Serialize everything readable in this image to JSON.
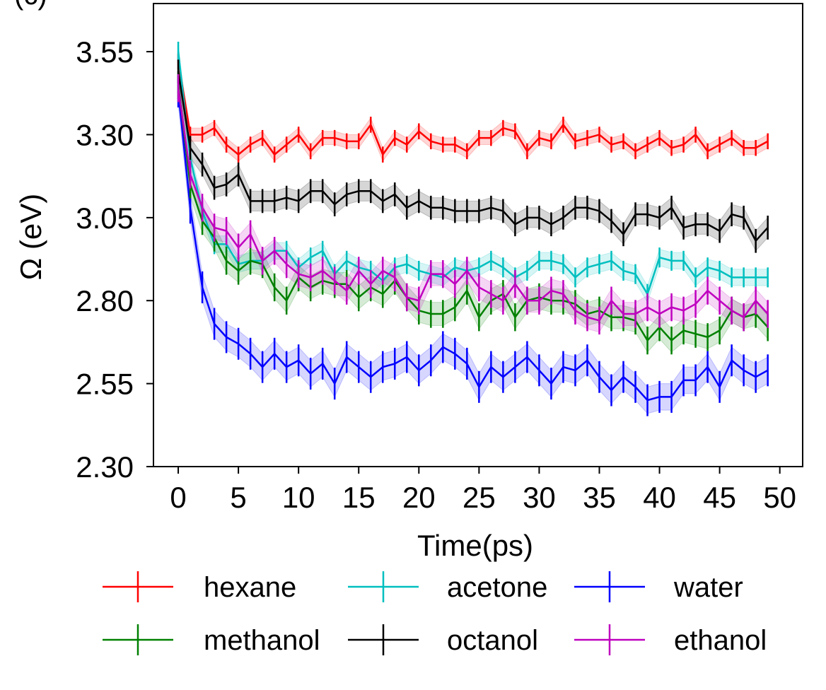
{
  "panel_label": "(c)",
  "chart_data": {
    "type": "line",
    "title": "",
    "xlabel": "Time(ps)",
    "ylabel": "Ω (eV)",
    "xlim": [
      -2.06,
      51.9
    ],
    "ylim": [
      2.3,
      3.695
    ],
    "xticks": [
      0,
      5,
      10,
      15,
      20,
      25,
      30,
      35,
      40,
      45,
      50
    ],
    "yticks": [
      "2.30",
      "2.55",
      "2.80",
      "3.05",
      "3.30",
      "3.55"
    ],
    "grid": false,
    "legend_placement": "bottom",
    "x": [
      0,
      1,
      2,
      3,
      4,
      5,
      6,
      7,
      8,
      9,
      10,
      11,
      12,
      13,
      14,
      15,
      16,
      17,
      18,
      19,
      20,
      21,
      22,
      23,
      24,
      25,
      26,
      27,
      28,
      29,
      30,
      31,
      32,
      33,
      34,
      35,
      36,
      37,
      38,
      39,
      40,
      41,
      42,
      43,
      44,
      45,
      46,
      47,
      48,
      49
    ],
    "series": [
      {
        "name": "hexane",
        "color": "#ff0000",
        "error": 0.02,
        "values": [
          3.52,
          3.3,
          3.3,
          3.32,
          3.27,
          3.24,
          3.27,
          3.29,
          3.24,
          3.27,
          3.3,
          3.25,
          3.29,
          3.29,
          3.28,
          3.28,
          3.33,
          3.24,
          3.29,
          3.27,
          3.31,
          3.28,
          3.27,
          3.27,
          3.25,
          3.29,
          3.29,
          3.32,
          3.31,
          3.25,
          3.29,
          3.28,
          3.33,
          3.28,
          3.29,
          3.3,
          3.27,
          3.28,
          3.25,
          3.27,
          3.29,
          3.26,
          3.27,
          3.3,
          3.25,
          3.27,
          3.29,
          3.26,
          3.26,
          3.28
        ]
      },
      {
        "name": "acetone",
        "color": "#00bfbf",
        "error": 0.025,
        "values": [
          3.55,
          3.23,
          3.07,
          2.97,
          2.97,
          2.91,
          2.92,
          2.92,
          2.95,
          2.95,
          2.9,
          2.93,
          2.95,
          2.88,
          2.92,
          2.9,
          2.89,
          2.86,
          2.9,
          2.91,
          2.89,
          2.88,
          2.87,
          2.9,
          2.89,
          2.9,
          2.92,
          2.9,
          2.87,
          2.89,
          2.92,
          2.92,
          2.91,
          2.87,
          2.9,
          2.91,
          2.92,
          2.89,
          2.88,
          2.82,
          2.93,
          2.92,
          2.92,
          2.87,
          2.9,
          2.89,
          2.87,
          2.87,
          2.87,
          2.87
        ]
      },
      {
        "name": "water",
        "color": "#0000ff",
        "error": 0.04,
        "values": [
          3.43,
          3.08,
          2.84,
          2.73,
          2.69,
          2.67,
          2.64,
          2.6,
          2.64,
          2.6,
          2.62,
          2.58,
          2.61,
          2.55,
          2.63,
          2.6,
          2.57,
          2.6,
          2.61,
          2.63,
          2.59,
          2.62,
          2.66,
          2.64,
          2.61,
          2.54,
          2.6,
          2.57,
          2.6,
          2.63,
          2.59,
          2.55,
          2.6,
          2.59,
          2.62,
          2.57,
          2.53,
          2.57,
          2.54,
          2.5,
          2.51,
          2.51,
          2.56,
          2.56,
          2.6,
          2.54,
          2.62,
          2.59,
          2.57,
          2.59
        ]
      },
      {
        "name": "methanol",
        "color": "#008000",
        "error": 0.035,
        "values": [
          3.45,
          3.15,
          3.04,
          2.99,
          2.92,
          2.89,
          2.92,
          2.91,
          2.84,
          2.8,
          2.87,
          2.84,
          2.86,
          2.85,
          2.85,
          2.81,
          2.84,
          2.82,
          2.86,
          2.81,
          2.77,
          2.76,
          2.76,
          2.78,
          2.83,
          2.75,
          2.8,
          2.82,
          2.75,
          2.8,
          2.81,
          2.8,
          2.8,
          2.79,
          2.76,
          2.77,
          2.75,
          2.75,
          2.74,
          2.68,
          2.72,
          2.68,
          2.71,
          2.7,
          2.69,
          2.71,
          2.77,
          2.75,
          2.76,
          2.72
        ]
      },
      {
        "name": "octanol",
        "color": "#000000",
        "error": 0.03,
        "values": [
          3.49,
          3.26,
          3.21,
          3.14,
          3.15,
          3.18,
          3.1,
          3.1,
          3.1,
          3.11,
          3.1,
          3.13,
          3.13,
          3.09,
          3.12,
          3.13,
          3.13,
          3.1,
          3.12,
          3.08,
          3.1,
          3.08,
          3.08,
          3.07,
          3.07,
          3.07,
          3.08,
          3.07,
          3.03,
          3.05,
          3.05,
          3.03,
          3.05,
          3.08,
          3.08,
          3.07,
          3.04,
          3.0,
          3.06,
          3.06,
          3.05,
          3.08,
          3.02,
          3.03,
          3.03,
          3.01,
          3.06,
          3.05,
          2.98,
          3.02
        ]
      },
      {
        "name": "ethanol",
        "color": "#bf00bf",
        "error": 0.035,
        "values": [
          3.44,
          3.18,
          3.08,
          3.02,
          3.01,
          2.96,
          3.0,
          2.92,
          2.95,
          2.91,
          2.88,
          2.87,
          2.89,
          2.86,
          2.83,
          2.89,
          2.85,
          2.89,
          2.87,
          2.81,
          2.8,
          2.88,
          2.88,
          2.85,
          2.89,
          2.84,
          2.82,
          2.8,
          2.85,
          2.8,
          2.8,
          2.83,
          2.82,
          2.77,
          2.75,
          2.74,
          2.8,
          2.76,
          2.76,
          2.78,
          2.76,
          2.78,
          2.77,
          2.79,
          2.83,
          2.8,
          2.77,
          2.75,
          2.8,
          2.76
        ]
      }
    ],
    "legend_order": [
      "hexane",
      "acetone",
      "water",
      "methanol",
      "octanol",
      "ethanol"
    ]
  }
}
